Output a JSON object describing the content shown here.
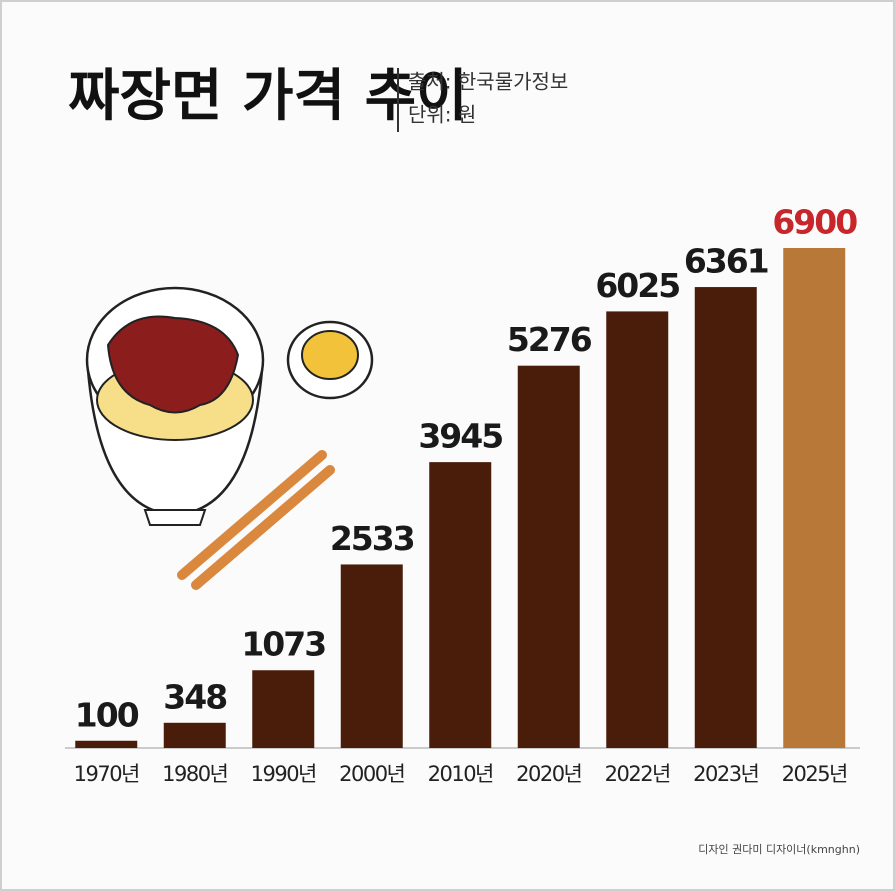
{
  "chart_data": {
    "type": "bar",
    "title": "짜장면 가격 추이",
    "source": "출처: 한국물가정보",
    "unit": "단위: 원",
    "categories": [
      "1970년",
      "1980년",
      "1990년",
      "2000년",
      "2010년",
      "2020년",
      "2022년",
      "2023년",
      "2025년"
    ],
    "values": [
      100,
      348,
      1073,
      2533,
      3945,
      5276,
      6025,
      6361,
      6900
    ],
    "colors": [
      "#4a1d0b",
      "#4a1d0b",
      "#4a1d0b",
      "#4a1d0b",
      "#4a1d0b",
      "#4a1d0b",
      "#4a1d0b",
      "#4a1d0b",
      "#b87838"
    ],
    "label_colors": [
      "#1a1a1a",
      "#1a1a1a",
      "#1a1a1a",
      "#1a1a1a",
      "#1a1a1a",
      "#1a1a1a",
      "#1a1a1a",
      "#1a1a1a",
      "#c8262a"
    ],
    "credit": "디자인 권다미 디자이너(kmnghn)"
  }
}
